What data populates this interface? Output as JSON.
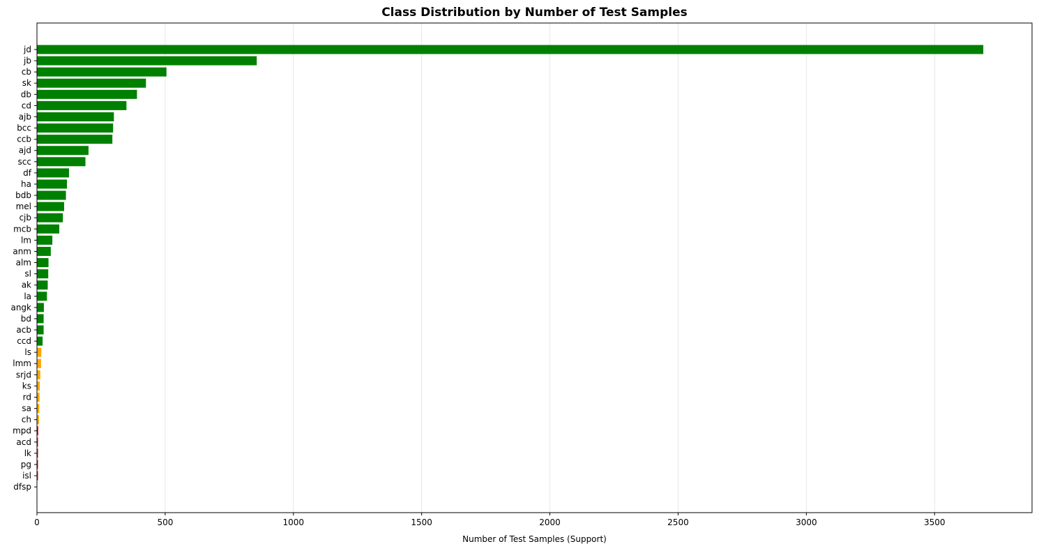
{
  "chart_data": {
    "type": "bar",
    "orientation": "horizontal",
    "title": "Class Distribution by Number of Test Samples",
    "xlabel": "Number of Test Samples (Support)",
    "ylabel": "",
    "xlim": [
      0,
      3880
    ],
    "xticks": [
      0,
      500,
      1000,
      1500,
      2000,
      2500,
      3000,
      3500
    ],
    "grid": "x-axis vertical lines",
    "legend": "none",
    "categories": [
      "jd",
      "jb",
      "cb",
      "sk",
      "db",
      "cd",
      "ajb",
      "bcc",
      "ccb",
      "ajd",
      "scc",
      "df",
      "ha",
      "bdb",
      "mel",
      "cjb",
      "mcb",
      "lm",
      "anm",
      "alm",
      "sl",
      "ak",
      "la",
      "angk",
      "bd",
      "acb",
      "ccd",
      "ls",
      "lmm",
      "srjd",
      "ks",
      "rd",
      "sa",
      "ch",
      "mpd",
      "acd",
      "lk",
      "pg",
      "isl",
      "dfsp"
    ],
    "values": [
      3690,
      857,
      505,
      425,
      390,
      349,
      300,
      297,
      294,
      201,
      189,
      125,
      117,
      113,
      106,
      101,
      87,
      60,
      54,
      45,
      44,
      42,
      39,
      27,
      26,
      26,
      22,
      17,
      16,
      13,
      11,
      10,
      9,
      8,
      5,
      4,
      4,
      4,
      4,
      1
    ],
    "bar_colors": [
      "#008000",
      "#008000",
      "#008000",
      "#008000",
      "#008000",
      "#008000",
      "#008000",
      "#008000",
      "#008000",
      "#008000",
      "#008000",
      "#008000",
      "#008000",
      "#008000",
      "#008000",
      "#008000",
      "#008000",
      "#008000",
      "#008000",
      "#008000",
      "#008000",
      "#008000",
      "#008000",
      "#008000",
      "#008000",
      "#008000",
      "#008000",
      "#ffa500",
      "#ffa500",
      "#ffa500",
      "#ffa500",
      "#ffa500",
      "#ffa500",
      "#ffa500",
      "#ff0000",
      "#ff0000",
      "#ff0000",
      "#ff0000",
      "#ff0000",
      "#ff0000"
    ]
  }
}
